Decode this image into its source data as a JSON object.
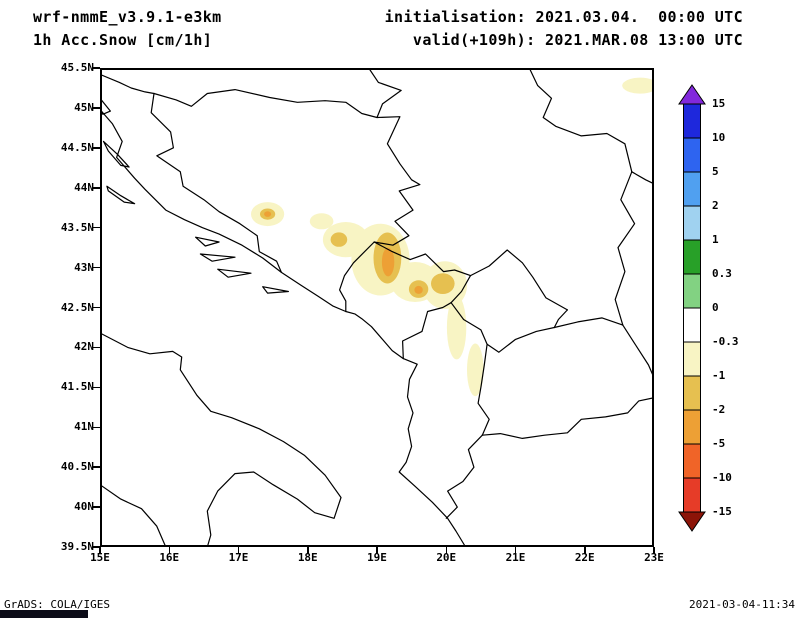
{
  "header": {
    "model": "wrf-nmmE_v3.9.1-e3km",
    "product": "1h Acc.Snow [cm/1h]",
    "init": "initialisation: 2021.03.04.  00:00 UTC",
    "valid": "valid(+109h): 2021.MAR.08 13:00 UTC"
  },
  "footer": {
    "left": "GrADS: COLA/IGES",
    "right": "2021-03-04-11:34"
  },
  "chart_data": {
    "type": "heatmap",
    "title": "1h Acc.Snow [cm/1h]",
    "model": "wrf-nmmE_v3.9.1-e3km",
    "grid": false,
    "x_axis": {
      "ticks": [
        "15E",
        "16E",
        "17E",
        "18E",
        "19E",
        "20E",
        "21E",
        "22E",
        "23E"
      ],
      "lon_range": [
        15,
        23
      ]
    },
    "y_axis": {
      "ticks": [
        "45.5N",
        "45N",
        "44.5N",
        "44N",
        "43.5N",
        "43N",
        "42.5N",
        "42N",
        "41.5N",
        "41N",
        "40.5N",
        "40N",
        "39.5N"
      ],
      "lat_range": [
        39.5,
        45.5
      ]
    },
    "colorbar": {
      "orientation": "vertical",
      "position": "right",
      "boundary_labels": [
        "15",
        "10",
        "5",
        "2",
        "1",
        "0.3",
        "0",
        "-0.3",
        "-1",
        "-2",
        "-5",
        "-10",
        "-15"
      ],
      "segment_colors": [
        "#1e28dc",
        "#2e64f0",
        "#50a0f0",
        "#a0d2f0",
        "#28a028",
        "#82d282",
        "#ffffff",
        "#f8f4c4",
        "#e6c050",
        "#eda035",
        "#f06428",
        "#e63c28"
      ],
      "arrow_top_color": "#8228dc",
      "arrow_bottom_color": "#8c1408"
    },
    "snow_features": [
      {
        "lon": 17.42,
        "lat": 43.67,
        "rx": 0.24,
        "ry": 0.15,
        "band": "-0.3"
      },
      {
        "lon": 18.2,
        "lat": 43.58,
        "rx": 0.17,
        "ry": 0.1,
        "band": "-0.3"
      },
      {
        "lon": 18.55,
        "lat": 43.35,
        "rx": 0.33,
        "ry": 0.22,
        "band": "-0.3"
      },
      {
        "lon": 19.05,
        "lat": 43.1,
        "rx": 0.42,
        "ry": 0.45,
        "band": "-0.3"
      },
      {
        "lon": 19.55,
        "lat": 42.82,
        "rx": 0.35,
        "ry": 0.25,
        "band": "-0.3"
      },
      {
        "lon": 19.98,
        "lat": 42.78,
        "rx": 0.32,
        "ry": 0.3,
        "band": "-0.3"
      },
      {
        "lon": 20.15,
        "lat": 42.25,
        "rx": 0.14,
        "ry": 0.4,
        "band": "-0.3"
      },
      {
        "lon": 20.42,
        "lat": 41.72,
        "rx": 0.12,
        "ry": 0.33,
        "band": "-0.3"
      },
      {
        "lon": 22.8,
        "lat": 45.28,
        "rx": 0.26,
        "ry": 0.1,
        "band": "-0.3"
      },
      {
        "lon": 17.42,
        "lat": 43.67,
        "rx": 0.11,
        "ry": 0.07,
        "band": "-1"
      },
      {
        "lon": 18.45,
        "lat": 43.35,
        "rx": 0.12,
        "ry": 0.09,
        "band": "-1"
      },
      {
        "lon": 19.15,
        "lat": 43.12,
        "rx": 0.2,
        "ry": 0.32,
        "band": "-1"
      },
      {
        "lon": 19.6,
        "lat": 42.73,
        "rx": 0.14,
        "ry": 0.11,
        "band": "-1"
      },
      {
        "lon": 19.95,
        "lat": 42.8,
        "rx": 0.17,
        "ry": 0.13,
        "band": "-1"
      },
      {
        "lon": 19.16,
        "lat": 43.07,
        "rx": 0.09,
        "ry": 0.18,
        "band": "-2"
      },
      {
        "lon": 19.6,
        "lat": 42.72,
        "rx": 0.06,
        "ry": 0.05,
        "band": "-2"
      },
      {
        "lon": 17.42,
        "lat": 43.67,
        "rx": 0.05,
        "ry": 0.035,
        "band": "-2"
      }
    ]
  }
}
